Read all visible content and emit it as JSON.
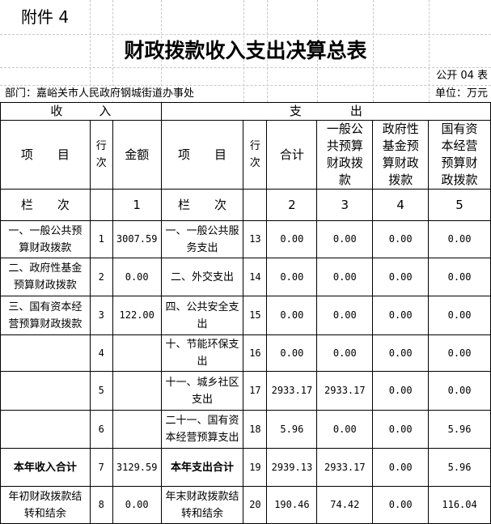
{
  "annex": "附件 4",
  "title": "财政拨款收入支出决算总表",
  "form_no": "公开 04 表",
  "department": "部门：嘉峪关市人民政府钢城街道办事处",
  "unit": "单位：万元",
  "header": {
    "income": "收　　　入",
    "expense": "支　　　　出",
    "item": "项　　目",
    "row_no": "行次",
    "amount": "金额",
    "total": "合计",
    "general": "一般公共预算财政拨款",
    "fund": "政府性基金预算财政拨款",
    "state": "国有资本经营预算财政拨款",
    "col_label": "栏　　次",
    "c1": "1",
    "c2": "2",
    "c3": "3",
    "c4": "4",
    "c5": "5"
  },
  "rows": [
    {
      "in_item": "一、一般公共预算财政拨款",
      "in_no": "1",
      "in_amt": "3007.59",
      "ex_item": "一、一般公共服务支出",
      "ex_no": "13",
      "total": "0.00",
      "general": "0.00",
      "fund": "0.00",
      "state": "0.00"
    },
    {
      "in_item": "二、政府性基金预算财政拨款",
      "in_no": "2",
      "in_amt": "0.00",
      "ex_item": "二、外交支出",
      "ex_no": "14",
      "total": "0.00",
      "general": "0.00",
      "fund": "0.00",
      "state": "0.00"
    },
    {
      "in_item": "三、国有资本经营预算财政拨款",
      "in_no": "3",
      "in_amt": "122.00",
      "ex_item": "四、公共安全支出",
      "ex_no": "15",
      "total": "0.00",
      "general": "0.00",
      "fund": "0.00",
      "state": "0.00"
    },
    {
      "in_item": "",
      "in_no": "4",
      "in_amt": "",
      "ex_item": "十、节能环保支出",
      "ex_no": "16",
      "total": "0.00",
      "general": "0.00",
      "fund": "0.00",
      "state": "0.00"
    },
    {
      "in_item": "",
      "in_no": "5",
      "in_amt": "",
      "ex_item": "十一、城乡社区支出",
      "ex_no": "17",
      "total": "2933.17",
      "general": "2933.17",
      "fund": "0.00",
      "state": "0.00"
    },
    {
      "in_item": "",
      "in_no": "6",
      "in_amt": "",
      "ex_item": "二十一、国有资本经营预算支出",
      "ex_no": "18",
      "total": "5.96",
      "general": "0.00",
      "fund": "0.00",
      "state": "5.96"
    },
    {
      "in_item": "本年收入合计",
      "in_no": "7",
      "in_amt": "3129.59",
      "ex_item": "本年支出合计",
      "ex_no": "19",
      "total": "2939.13",
      "general": "2933.17",
      "fund": "0.00",
      "state": "5.96",
      "bold": true
    },
    {
      "in_item": "年初财政拨款结转和结余",
      "in_no": "8",
      "in_amt": "0.00",
      "ex_item": "年末财政拨款结转和结余",
      "ex_no": "20",
      "total": "190.46",
      "general": "74.42",
      "fund": "0.00",
      "state": "116.04"
    }
  ]
}
